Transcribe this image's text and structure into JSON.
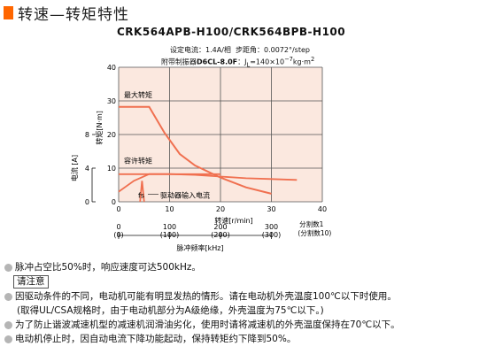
{
  "header": {
    "title": "转速—转矩特性",
    "accent_color": "#ff6600"
  },
  "model": "CRK564APB-H100/CRK564BPB-H100",
  "specs": {
    "line1_label": "设定电流：",
    "current": "1.4A/相",
    "step_label": "步距角：",
    "step_angle": "0.0072°/step",
    "line2_label": "附带制振器",
    "damper": "D6CL-8.0F",
    "inertia_label": "：J",
    "inertia_sub": "L",
    "inertia_value": "=140×10",
    "inertia_exp": "−7",
    "inertia_unit": "kg·m",
    "inertia_unit_exp": "2"
  },
  "chart_data": {
    "type": "line",
    "xlabel": "转速[r/min]",
    "xlim": [
      0,
      40
    ],
    "x_ticks": [
      0,
      10,
      20,
      30,
      40
    ],
    "ylabel": "转矩[N·m]",
    "ylim": [
      0,
      40
    ],
    "y_ticks": [
      0,
      10,
      20,
      30,
      40
    ],
    "y2label": "电流 [A]",
    "y2_ticks": [
      {
        "value": 0,
        "label": "0"
      },
      {
        "value": 4,
        "label": "4"
      },
      {
        "value": 8,
        "label": "8"
      }
    ],
    "grid": true,
    "curve_color": "#f07050",
    "series": [
      {
        "name": "最大转矩",
        "x": [
          0,
          6,
          9,
          12,
          15,
          20,
          25,
          30
        ],
        "y": [
          28.2,
          28.2,
          20.5,
          14.2,
          10.8,
          7.2,
          4.3,
          2.4
        ]
      },
      {
        "name": "容许转矩",
        "x": [
          0,
          20
        ],
        "y": [
          8.2,
          8.2
        ]
      },
      {
        "name": "驱动器输入电流",
        "x": [
          0,
          3,
          6,
          10,
          15,
          20,
          25,
          30,
          35
        ],
        "y": [
          1.2,
          2.5,
          3.3,
          3.3,
          3.2,
          3.0,
          2.8,
          2.7,
          2.6
        ]
      },
      {
        "name": "fs",
        "x": [
          4.2,
          4.6,
          5.0
        ],
        "y": [
          0,
          2.5,
          0
        ]
      }
    ],
    "annotations": {
      "max_torque": "最大转矩",
      "allowable_torque": "容许转矩",
      "driver_current": "驱动器输入电流",
      "fs": "fs"
    },
    "pulse_axis": {
      "label": "脉冲频率[kHz]",
      "speed_ticks": [
        0,
        10,
        20,
        30
      ],
      "pulse_ticks": [
        "0",
        "100",
        "200",
        "300"
      ],
      "divisions": [
        "(0)",
        "(100)",
        "(200)",
        "(300)"
      ],
      "division_label": "分割数1",
      "division_label2": "(分割数10)"
    }
  },
  "notes": [
    {
      "type": "bullet",
      "text": "脉冲占空比50%时，响应速度可达500kHz。"
    },
    {
      "type": "caution",
      "text": "请注意"
    },
    {
      "type": "bullet",
      "text": "因驱动条件的不同，电动机可能有明显发热的情形。请在电动机外壳温度100℃以下时使用。"
    },
    {
      "type": "indent",
      "text": "(取得UL/CSA规格时，由于电动机部分为A级绝缘，外壳温度为75℃以下。)"
    },
    {
      "type": "bullet",
      "text": "为了防止谐波减速机型的减速机润滑油劣化，使用时请将减速机的外壳温度保持在70℃以下。"
    },
    {
      "type": "bullet",
      "text": "电动机停止时，因自动电流下降功能起动，保持转矩约下降到50%。"
    }
  ]
}
